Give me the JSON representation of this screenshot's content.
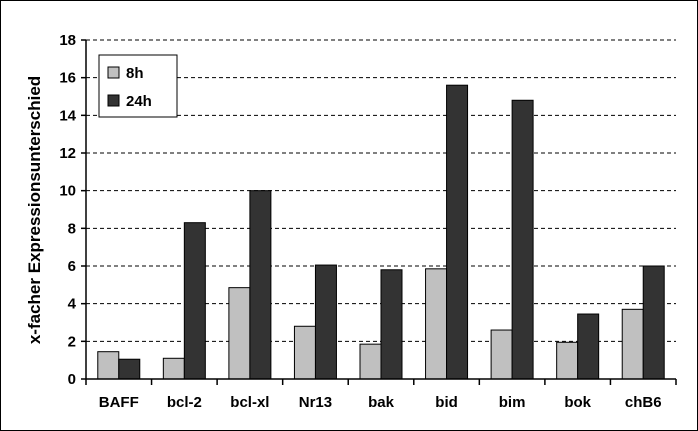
{
  "chart_data": {
    "type": "bar",
    "title": "",
    "xlabel": "",
    "ylabel": "x-facher Expressionsunterschied",
    "categories": [
      "BAFF",
      "bcl-2",
      "bcl-xl",
      "Nr13",
      "bak",
      "bid",
      "bim",
      "bok",
      "chB6"
    ],
    "series": [
      {
        "name": "8h",
        "color": "#c0c0c0",
        "values": [
          1.45,
          1.1,
          4.85,
          2.8,
          1.85,
          5.85,
          2.6,
          1.95,
          3.7
        ]
      },
      {
        "name": "24h",
        "color": "#333333",
        "values": [
          1.05,
          8.3,
          10.0,
          6.05,
          5.8,
          15.6,
          14.8,
          3.45,
          6.0
        ]
      }
    ],
    "ylim": [
      0,
      18
    ],
    "yticks": [
      "0",
      "2",
      "4",
      "6",
      "8",
      "10",
      "12",
      "14",
      "16",
      "18"
    ],
    "grid": "dashed horizontal",
    "legend": "top-left"
  }
}
